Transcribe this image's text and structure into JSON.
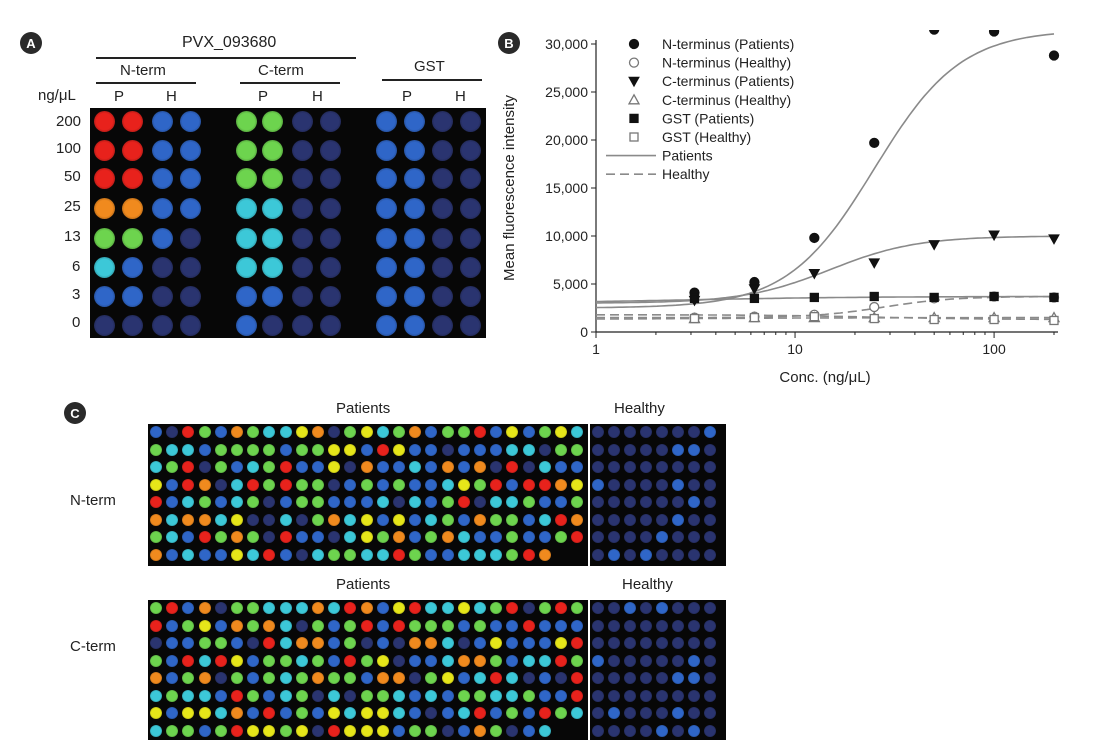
{
  "panel_a": {
    "badge": "A",
    "protein": "PVX_093680",
    "groups": [
      "N-term",
      "C-term",
      "GST"
    ],
    "units": "ng/μL",
    "sub_p": "P",
    "sub_h": "H",
    "concentrations": [
      "200",
      "100",
      "50",
      "25",
      "13",
      "6",
      "3",
      "0"
    ]
  },
  "panel_b": {
    "badge": "B"
  },
  "panel_c": {
    "badge": "C",
    "n_patients": "Patients",
    "n_healthy": "Healthy",
    "n_row_label": "N-term",
    "c_patients": "Patients",
    "c_healthy": "Healthy",
    "c_row_label": "C-term"
  },
  "colors": {
    "red": "#e8221c",
    "orange": "#f08a1e",
    "yellow": "#e6e619",
    "green": "#6dd44e",
    "cyan": "#3cc8d8",
    "blue": "#2f66c8",
    "dim": "#2a3470",
    "background": "#070707"
  },
  "chart_data": {
    "type": "scatter",
    "xscale": "log",
    "xlim": [
      1,
      200
    ],
    "ylim": [
      0,
      30000
    ],
    "xlabel": "Conc. (ng/μL)",
    "ylabel": "Mean fluorescence intensity",
    "xticks": [
      "1",
      "10",
      "100"
    ],
    "yticks": [
      "0",
      "5,000",
      "10,000",
      "15,000",
      "20,000",
      "25,000",
      "30,000"
    ],
    "ytick_values": [
      0,
      5000,
      10000,
      15000,
      20000,
      25000,
      30000
    ],
    "legend": [
      {
        "label": "N-terminus (Patients)",
        "marker": "filled-circle"
      },
      {
        "label": "N-terminus (Healthy)",
        "marker": "open-circle"
      },
      {
        "label": "C-terminus (Patients)",
        "marker": "filled-triangle-down"
      },
      {
        "label": "C-terminus (Healthy)",
        "marker": "open-triangle-up"
      },
      {
        "label": "GST (Patients)",
        "marker": "filled-square"
      },
      {
        "label": "GST (Healthy)",
        "marker": "open-square"
      },
      {
        "label": "Patients",
        "marker": "solid-line"
      },
      {
        "label": "Healthy",
        "marker": "dashed-line"
      }
    ],
    "x": [
      3.125,
      6.25,
      12.5,
      25,
      50,
      100,
      200
    ],
    "series": [
      {
        "name": "N-terminus (Patients)",
        "marker": "filled-circle",
        "values": [
          4100,
          5200,
          9800,
          19700,
          31500,
          31300,
          28800
        ]
      },
      {
        "name": "N-terminus (Healthy)",
        "marker": "open-circle",
        "values": [
          1500,
          1600,
          1800,
          2600,
          3500,
          3700,
          3600
        ]
      },
      {
        "name": "C-terminus (Patients)",
        "marker": "filled-triangle-down",
        "values": [
          3300,
          4500,
          6100,
          7200,
          9100,
          10100,
          9700
        ]
      },
      {
        "name": "C-terminus (Healthy)",
        "marker": "open-triangle-up",
        "values": [
          1400,
          1500,
          1500,
          1500,
          1500,
          1500,
          1500
        ]
      },
      {
        "name": "GST (Patients)",
        "marker": "filled-square",
        "values": [
          3500,
          3500,
          3600,
          3700,
          3600,
          3700,
          3600
        ]
      },
      {
        "name": "GST (Healthy)",
        "marker": "open-square",
        "values": [
          1400,
          1500,
          1600,
          1400,
          1300,
          1300,
          1200
        ]
      }
    ],
    "fits": [
      {
        "name": "N-terminus fit",
        "style": "solid",
        "bottom": 2500,
        "top": 31500,
        "ec50": 25,
        "hill": 2.0
      },
      {
        "name": "C-terminus fit",
        "style": "solid",
        "bottom": 3000,
        "top": 10000,
        "ec50": 15,
        "hill": 2.0
      },
      {
        "name": "GST fit",
        "style": "solid",
        "bottom": 3000,
        "top": 3700,
        "ec50": 3,
        "hill": 1.0
      },
      {
        "name": "N-terminus healthy fit",
        "style": "dashed",
        "bottom": 1500,
        "top": 3700,
        "ec50": 28,
        "hill": 2.5
      },
      {
        "name": "C-terminus healthy fit",
        "style": "dashed",
        "bottom": 1300,
        "top": 1500,
        "ec50": 3,
        "hill": 1.0
      },
      {
        "name": "GST healthy fit",
        "style": "dashed",
        "bottom": 1800,
        "top": 1300,
        "ec50": 25,
        "hill": 1.5
      }
    ]
  }
}
